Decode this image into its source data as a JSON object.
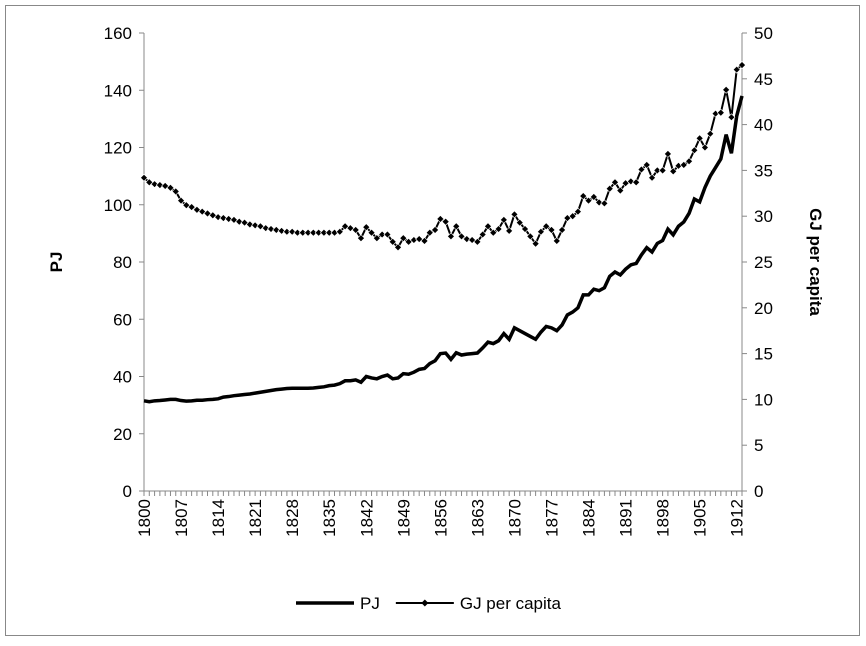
{
  "chart_data": {
    "type": "line",
    "categories": [
      "1800",
      null,
      null,
      null,
      null,
      null,
      null,
      "1807",
      null,
      null,
      null,
      null,
      null,
      null,
      "1814",
      null,
      null,
      null,
      null,
      null,
      null,
      "1821",
      null,
      null,
      null,
      null,
      null,
      null,
      "1828",
      null,
      null,
      null,
      null,
      null,
      null,
      "1835",
      null,
      null,
      null,
      null,
      null,
      null,
      "1842",
      null,
      null,
      null,
      null,
      null,
      null,
      "1849",
      null,
      null,
      null,
      null,
      null,
      null,
      "1856",
      null,
      null,
      null,
      null,
      null,
      null,
      "1863",
      null,
      null,
      null,
      null,
      null,
      null,
      "1870",
      null,
      null,
      null,
      null,
      null,
      null,
      "1877",
      null,
      null,
      null,
      null,
      null,
      null,
      "1884",
      null,
      null,
      null,
      null,
      null,
      null,
      "1891",
      null,
      null,
      null,
      null,
      null,
      null,
      "1898",
      null,
      null,
      null,
      null,
      null,
      null,
      "1905",
      null,
      null,
      null,
      null,
      null,
      null,
      "1912",
      null
    ],
    "series": [
      {
        "name": "PJ",
        "color": "#000000",
        "values": [
          31.5,
          31.2,
          31.5,
          31.6,
          31.8,
          32,
          32,
          31.6,
          31.4,
          31.5,
          31.7,
          31.7,
          31.9,
          32,
          32.2,
          32.8,
          33,
          33.3,
          33.5,
          33.7,
          33.9,
          34.2,
          34.5,
          34.8,
          35.1,
          35.4,
          35.6,
          35.8,
          35.9,
          35.9,
          35.9,
          35.9,
          36,
          36.2,
          36.4,
          36.8,
          37,
          37.5,
          38.5,
          38.5,
          38.8,
          38,
          40,
          39.5,
          39.2,
          40,
          40.5,
          39.2,
          39.5,
          41,
          40.8,
          41.5,
          42.5,
          42.8,
          44.5,
          45.5,
          48,
          48.2,
          46,
          48.3,
          47.5,
          47.8,
          48,
          48.2,
          50,
          52,
          51.5,
          52.5,
          55,
          53,
          57,
          56,
          55,
          54,
          53,
          55.5,
          57.5,
          57,
          56,
          58,
          61.5,
          62.5,
          64,
          68.5,
          68.5,
          70.5,
          70,
          71,
          75,
          76.5,
          75.5,
          77.5,
          79,
          79.5,
          82.5,
          85,
          83.5,
          86.5,
          87.5,
          91.5,
          89.5,
          92.5,
          94,
          97,
          102,
          101,
          106,
          110,
          113,
          116,
          124.5,
          118,
          131,
          138
        ]
      },
      {
        "name": "GJ per capita",
        "color": "#000000",
        "axis": "y2",
        "marker": "diamond",
        "values": [
          34.2,
          33.7,
          33.5,
          33.4,
          33.3,
          33.1,
          32.7,
          31.7,
          31.2,
          31,
          30.7,
          30.5,
          30.3,
          30.1,
          29.9,
          29.8,
          29.7,
          29.6,
          29.4,
          29.3,
          29.1,
          29,
          28.9,
          28.7,
          28.6,
          28.5,
          28.4,
          28.3,
          28.3,
          28.2,
          28.2,
          28.2,
          28.2,
          28.2,
          28.2,
          28.2,
          28.2,
          28.3,
          28.9,
          28.7,
          28.5,
          27.6,
          28.8,
          28.2,
          27.6,
          28,
          28,
          27.2,
          26.6,
          27.6,
          27.2,
          27.4,
          27.5,
          27.3,
          28.2,
          28.5,
          29.7,
          29.4,
          27.8,
          28.9,
          27.8,
          27.5,
          27.4,
          27.2,
          28,
          28.9,
          28.2,
          28.6,
          29.6,
          28.4,
          30.2,
          29.3,
          28.6,
          27.8,
          27,
          28.3,
          28.9,
          28.5,
          27.3,
          28.5,
          29.8,
          30,
          30.5,
          32.2,
          31.7,
          32.1,
          31.5,
          31.4,
          33,
          33.7,
          32.8,
          33.6,
          33.8,
          33.7,
          35.1,
          35.6,
          34.2,
          35,
          35,
          36.8,
          34.9,
          35.5,
          35.6,
          36,
          37.2,
          38.5,
          37.5,
          39,
          41.2,
          41.3,
          43.8,
          40.8,
          46,
          46.5
        ]
      }
    ],
    "ylabel": "PJ",
    "y2label": "GJ per capita",
    "ylim": [
      0,
      160
    ],
    "yticks": [
      0,
      20,
      40,
      60,
      80,
      100,
      120,
      140,
      160
    ],
    "y2lim": [
      0,
      50
    ],
    "y2ticks": [
      0,
      5,
      10,
      15,
      20,
      25,
      30,
      35,
      40,
      45,
      50
    ],
    "legend": "bottom"
  }
}
